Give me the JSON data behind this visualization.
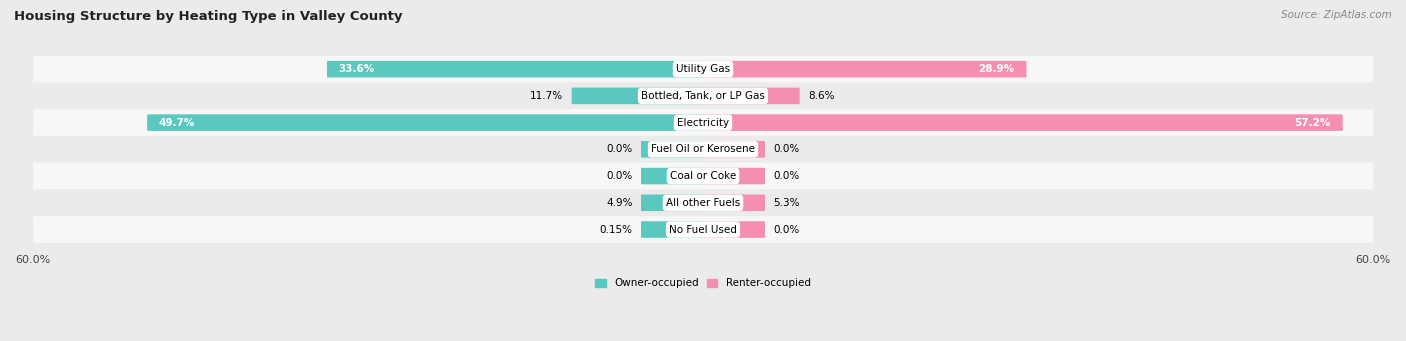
{
  "title": "Housing Structure by Heating Type in Valley County",
  "source": "Source: ZipAtlas.com",
  "categories": [
    "Utility Gas",
    "Bottled, Tank, or LP Gas",
    "Electricity",
    "Fuel Oil or Kerosene",
    "Coal or Coke",
    "All other Fuels",
    "No Fuel Used"
  ],
  "owner_values": [
    33.6,
    11.7,
    49.7,
    0.0,
    0.0,
    4.9,
    0.15
  ],
  "renter_values": [
    28.9,
    8.6,
    57.2,
    0.0,
    0.0,
    5.3,
    0.0
  ],
  "owner_color": "#5BC8BF",
  "renter_color": "#F48FB1",
  "axis_max": 60.0,
  "bg_color": "#EBEBEB",
  "row_bg_color": "#F7F7F7",
  "alt_row_bg_color": "#EBEBEB",
  "title_fontsize": 9.5,
  "label_fontsize": 7.5,
  "tick_fontsize": 8,
  "source_fontsize": 7.5,
  "min_bar_width": 5.5,
  "bar_height": 0.52
}
